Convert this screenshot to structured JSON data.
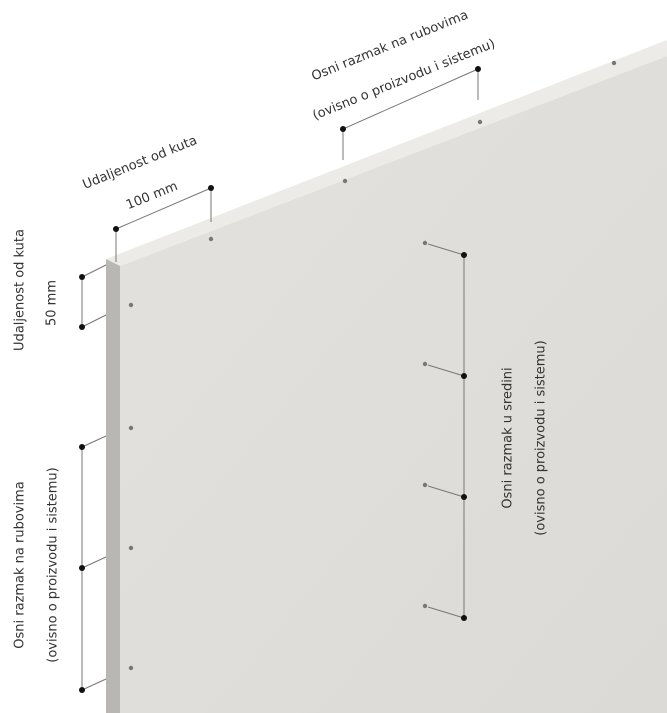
{
  "labels": {
    "top_corner_title": "Udaljenost od kuta",
    "top_corner_value": "100 mm",
    "top_edge_title": "Osni razmak na rubovima",
    "top_edge_note": "(ovisno o proizvodu i sistemu)",
    "left_corner_title": "Udaljenost od kuta",
    "left_corner_value": "50 mm",
    "left_edge_title": "Osni razmak na rubovima",
    "left_edge_note": "(ovisno o proizvodu i sistemu)",
    "middle_title": "Osni razmak u sredini",
    "middle_note": "(ovisno o proizvodu i sistemu)"
  }
}
